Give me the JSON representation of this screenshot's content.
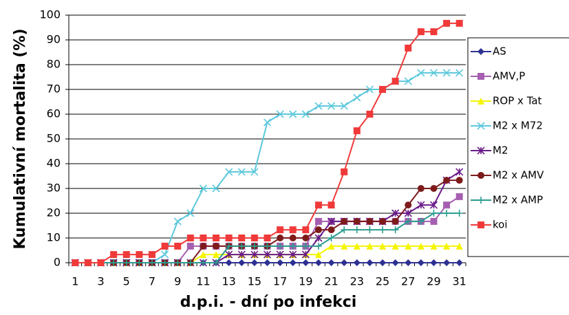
{
  "chart_data": {
    "type": "line",
    "ylabel": "Kumulativní mortalita (%)",
    "xlabel": "d.p.i. - dní po infekci",
    "categories": [
      "1",
      null,
      "3",
      null,
      "5",
      null,
      "7",
      null,
      "9",
      null,
      "11",
      null,
      "13",
      null,
      "15",
      null,
      "17",
      null,
      "19",
      null,
      "21",
      null,
      "23",
      null,
      "25",
      null,
      "27",
      null,
      "29",
      null,
      "31"
    ],
    "ylim": [
      0,
      100
    ],
    "yticks": [
      0,
      10,
      20,
      30,
      40,
      50,
      60,
      70,
      80,
      90,
      100
    ],
    "grid": true,
    "legend": "right",
    "series": [
      {
        "name": "AS",
        "color": "#2e3192",
        "marker": "diamond",
        "values": [
          0,
          0,
          0,
          0,
          0,
          0,
          0,
          0,
          0,
          0,
          0,
          0,
          0,
          0,
          0,
          0,
          0,
          0,
          0,
          0,
          0,
          0,
          0,
          0,
          0,
          0,
          0,
          0,
          0,
          0,
          0
        ]
      },
      {
        "name": "AMV,P",
        "color": "#a65fb0",
        "marker": "square",
        "values": [
          0,
          0,
          0,
          0,
          0,
          0,
          0,
          0,
          0,
          6.7,
          6.7,
          6.7,
          6.7,
          6.7,
          6.7,
          6.7,
          6.7,
          6.7,
          6.7,
          16.7,
          16.7,
          16.7,
          16.7,
          16.7,
          16.7,
          16.7,
          16.7,
          16.7,
          16.7,
          23.3,
          26.7
        ]
      },
      {
        "name": "ROP x Tat",
        "color": "#f5f500",
        "marker": "triangle",
        "values": [
          0,
          0,
          0,
          0,
          0,
          0,
          0,
          0,
          0,
          0,
          3.3,
          3.3,
          3.3,
          3.3,
          3.3,
          3.3,
          3.3,
          3.3,
          3.3,
          3.3,
          6.7,
          6.7,
          6.7,
          6.7,
          6.7,
          6.7,
          6.7,
          6.7,
          6.7,
          6.7,
          6.7
        ]
      },
      {
        "name": "M2 x M72",
        "color": "#5bc8dc",
        "marker": "x",
        "values": [
          0,
          0,
          0,
          0,
          0,
          0,
          0,
          3.3,
          16.7,
          20,
          30,
          30,
          36.7,
          36.7,
          36.7,
          56.7,
          60,
          60,
          60,
          63.3,
          63.3,
          63.3,
          66.7,
          70,
          70,
          73.3,
          73.3,
          76.7,
          76.7,
          76.7,
          76.7
        ]
      },
      {
        "name": "M2",
        "color": "#6a1b8a",
        "marker": "asterisk",
        "values": [
          0,
          0,
          0,
          0,
          0,
          0,
          0,
          0,
          0,
          0,
          0,
          0,
          3.3,
          3.3,
          3.3,
          3.3,
          3.3,
          3.3,
          3.3,
          10,
          16.7,
          16.7,
          16.7,
          16.7,
          16.7,
          20,
          20,
          23.3,
          23.3,
          33.3,
          36.7
        ]
      },
      {
        "name": "M2 x AMV",
        "color": "#7d1b1b",
        "marker": "circle",
        "values": [
          0,
          0,
          0,
          0,
          0,
          0,
          0,
          0,
          0,
          0,
          6.7,
          6.7,
          6.7,
          6.7,
          6.7,
          6.7,
          10,
          10,
          10,
          13.3,
          13.3,
          16.7,
          16.7,
          16.7,
          16.7,
          16.7,
          23.3,
          30,
          30,
          33.3,
          33.3
        ]
      },
      {
        "name": "M2 x AMP",
        "color": "#2a9d8f",
        "marker": "plus",
        "values": [
          0,
          0,
          0,
          0,
          0,
          0,
          0,
          0,
          0,
          0,
          0,
          0,
          6.7,
          6.7,
          6.7,
          6.7,
          6.7,
          6.7,
          6.7,
          6.7,
          10,
          13.3,
          13.3,
          13.3,
          13.3,
          13.3,
          16.7,
          16.7,
          20,
          20,
          20
        ]
      },
      {
        "name": "koi",
        "color": "#f03a3a",
        "marker": "square",
        "values": [
          0,
          0,
          0,
          3.3,
          3.3,
          3.3,
          3.3,
          6.7,
          6.7,
          10,
          10,
          10,
          10,
          10,
          10,
          10,
          13.3,
          13.3,
          13.3,
          23.3,
          23.3,
          36.7,
          53.3,
          60,
          70,
          73.3,
          86.7,
          93.3,
          93.3,
          96.7,
          96.7
        ]
      }
    ]
  }
}
